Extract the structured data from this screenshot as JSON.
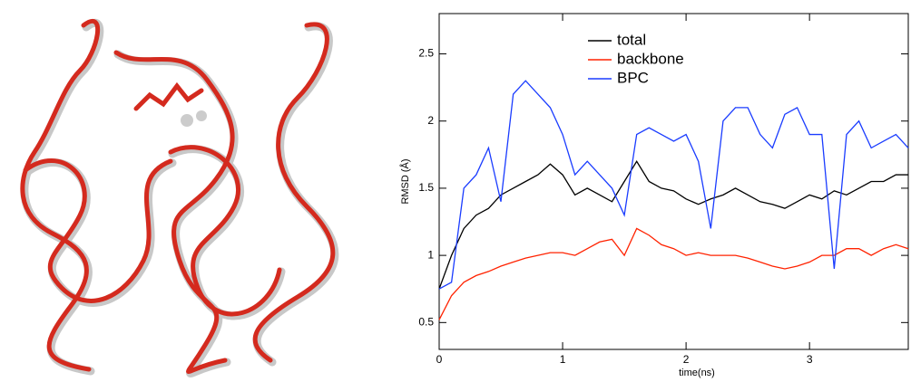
{
  "chart_data": {
    "type": "line",
    "x_label": "time(ns)",
    "y_label": "RMSD (Å)",
    "x": [
      0,
      0.1,
      0.2,
      0.3,
      0.4,
      0.5,
      0.6,
      0.7,
      0.8,
      0.9,
      1.0,
      1.1,
      1.2,
      1.3,
      1.4,
      1.5,
      1.6,
      1.7,
      1.8,
      1.9,
      2.0,
      2.1,
      2.2,
      2.3,
      2.4,
      2.5,
      2.6,
      2.7,
      2.8,
      2.9,
      3.0,
      3.1,
      3.2,
      3.3,
      3.4,
      3.5,
      3.6,
      3.7,
      3.8
    ],
    "series": [
      {
        "name": "total",
        "color": "#000000",
        "values": [
          0.75,
          1.0,
          1.2,
          1.3,
          1.35,
          1.45,
          1.5,
          1.55,
          1.6,
          1.68,
          1.6,
          1.45,
          1.5,
          1.45,
          1.4,
          1.55,
          1.7,
          1.55,
          1.5,
          1.48,
          1.42,
          1.38,
          1.42,
          1.45,
          1.5,
          1.45,
          1.4,
          1.38,
          1.35,
          1.4,
          1.45,
          1.42,
          1.48,
          1.45,
          1.5,
          1.55,
          1.55,
          1.6,
          1.6
        ]
      },
      {
        "name": "backbone",
        "color": "#ff2200",
        "values": [
          0.52,
          0.7,
          0.8,
          0.85,
          0.88,
          0.92,
          0.95,
          0.98,
          1.0,
          1.02,
          1.02,
          1.0,
          1.05,
          1.1,
          1.12,
          1.0,
          1.2,
          1.15,
          1.08,
          1.05,
          1.0,
          1.02,
          1.0,
          1.0,
          1.0,
          0.98,
          0.95,
          0.92,
          0.9,
          0.92,
          0.95,
          1.0,
          1.0,
          1.05,
          1.05,
          1.0,
          1.05,
          1.08,
          1.05
        ]
      },
      {
        "name": "BPC",
        "color": "#1a3cff",
        "values": [
          0.75,
          0.8,
          1.5,
          1.6,
          1.8,
          1.4,
          2.2,
          2.3,
          2.2,
          2.1,
          1.9,
          1.6,
          1.7,
          1.6,
          1.5,
          1.3,
          1.9,
          1.95,
          1.9,
          1.85,
          1.9,
          1.7,
          1.2,
          2.0,
          2.1,
          2.1,
          1.9,
          1.8,
          2.05,
          2.1,
          1.9,
          1.9,
          0.9,
          1.9,
          2.0,
          1.8,
          1.85,
          1.9,
          1.8
        ]
      }
    ],
    "xlim": [
      0,
      3.8
    ],
    "xticks": [
      0,
      1,
      2,
      3
    ],
    "ylim": [
      0.3,
      2.8
    ],
    "yticks": [
      0.5,
      1,
      1.5,
      2,
      2.5
    ],
    "legend": "upper center",
    "grid": false
  }
}
